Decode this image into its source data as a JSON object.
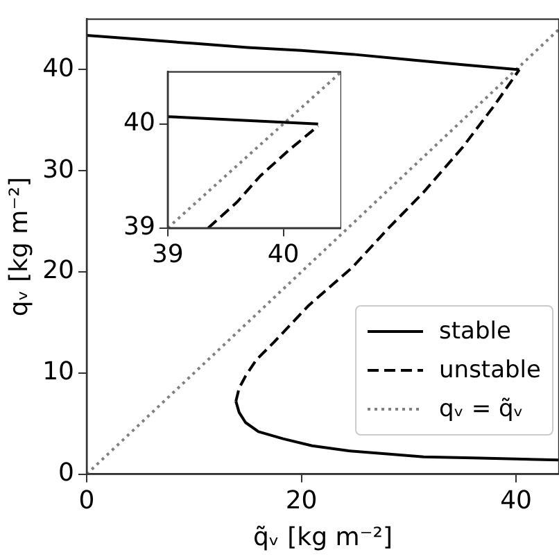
{
  "chart_data": [
    {
      "type": "line",
      "xlabel": "q̃ᵥ [kg m⁻²]",
      "ylabel": "qᵥ [kg m⁻²]",
      "xlim": [
        0,
        44
      ],
      "ylim": [
        0,
        45
      ],
      "xticks": [
        0,
        20,
        40
      ],
      "yticks": [
        0,
        10,
        20,
        30,
        40
      ],
      "grid": false,
      "legend": "bottom right",
      "marker": "none",
      "series": [
        {
          "name": "stable",
          "color": "#000000",
          "line_style": "solid",
          "x": [
            0,
            5,
            10,
            15,
            20,
            25,
            30,
            35,
            40.3
          ],
          "values": [
            43.4,
            43.0,
            42.6,
            42.2,
            41.9,
            41.5,
            41.0,
            40.5,
            40.0
          ]
        },
        {
          "color": "#000000",
          "line_style": "solid",
          "x": [
            13.9,
            14.2,
            14.8,
            16,
            18.3,
            21,
            24.4,
            28,
            31.4,
            36,
            40,
            44
          ],
          "values": [
            7.2,
            6.1,
            5.1,
            4.2,
            3.5,
            2.8,
            2.3,
            2.0,
            1.7,
            1.6,
            1.5,
            1.4
          ]
        },
        {
          "name": "unstable",
          "color": "#000000",
          "line_style": "dashed",
          "x": [
            13.9,
            14.2,
            14.8,
            15.8,
            17.4,
            20.7,
            24.8,
            28,
            31.4,
            35,
            38,
            40.3
          ],
          "values": [
            7.2,
            8.5,
            9.7,
            11.3,
            13.0,
            16.7,
            20.5,
            24.2,
            27.9,
            32.3,
            36.5,
            40.0
          ]
        },
        {
          "name": "qᵥ = q̃ᵥ",
          "color": "#808080",
          "line_style": "dotted",
          "x": [
            0,
            44
          ],
          "values": [
            0,
            44
          ]
        }
      ]
    },
    {
      "type": "line",
      "xlim": [
        39,
        40.5
      ],
      "ylim": [
        39,
        40.5
      ],
      "xticks": [
        39,
        40
      ],
      "yticks": [
        39,
        40
      ],
      "grid": false,
      "marker": "none",
      "series": [
        {
          "color": "#000000",
          "line_style": "solid",
          "x": [
            39,
            40.3
          ],
          "values": [
            40.07,
            40.0
          ]
        },
        {
          "color": "#000000",
          "line_style": "dashed",
          "x": [
            39.35,
            39.6,
            39.8,
            40.05,
            40.3
          ],
          "values": [
            39,
            39.25,
            39.5,
            39.75,
            39.98
          ]
        },
        {
          "color": "#808080",
          "line_style": "dotted",
          "x": [
            39,
            40.5
          ],
          "values": [
            39,
            40.5
          ]
        }
      ]
    }
  ]
}
